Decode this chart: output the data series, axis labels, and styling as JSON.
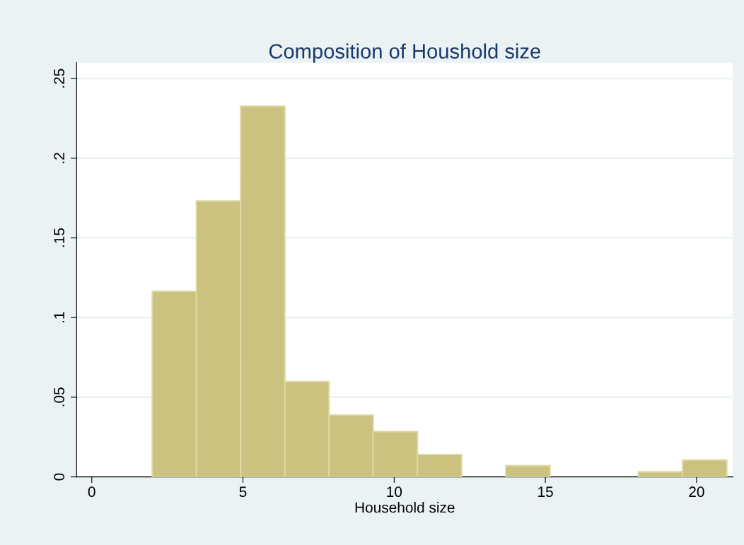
{
  "chart_data": {
    "type": "histogram",
    "title": "Composition of Houshold size",
    "xlabel": "Household size",
    "bins": [
      2,
      3.4615,
      4.9231,
      6.3846,
      7.8462,
      9.3077,
      10.7692,
      12.2308,
      13.6923,
      15.1538,
      16.6154,
      18.0769,
      19.5385,
      21
    ],
    "values": [
      0.1165,
      0.1732,
      0.2326,
      0.0598,
      0.0388,
      0.0284,
      0.014,
      0,
      0.007,
      0,
      0,
      0.0032,
      0.0106
    ],
    "color": "#cbc27f",
    "xlim": [
      -0.5,
      21.2
    ],
    "xticks": [
      0,
      5,
      10,
      15,
      20
    ],
    "ylim": [
      0,
      0.26
    ],
    "yticks": [
      {
        "value": 0,
        "label": "0"
      },
      {
        "value": 0.05,
        "label": ".05"
      },
      {
        "value": 0.1,
        "label": ".1"
      },
      {
        "value": 0.15,
        "label": ".15"
      },
      {
        "value": 0.2,
        "label": ".2"
      },
      {
        "value": 0.25,
        "label": ".25"
      }
    ],
    "grid": "y"
  }
}
